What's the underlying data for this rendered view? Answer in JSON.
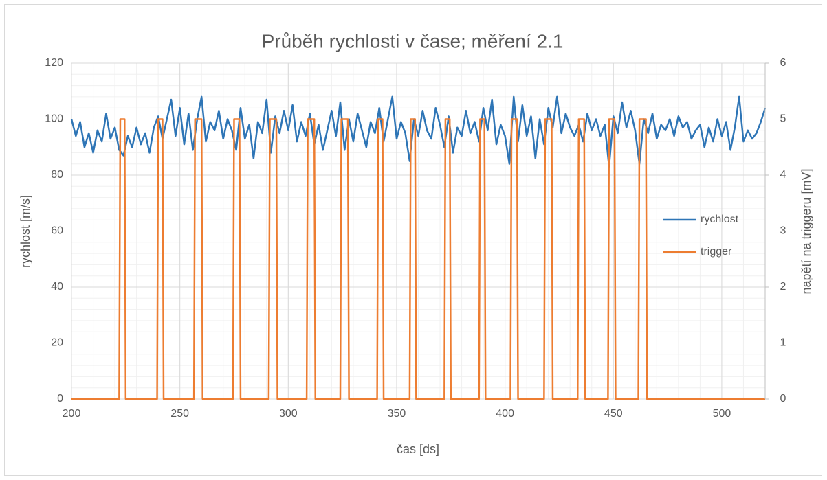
{
  "chart_data": {
    "type": "line",
    "title": "Průběh rychlosti v čase; měření 2.1",
    "x_label": "čas [ds]",
    "y_label": "rychlost [m/s]",
    "y2_label": "napětí na triggeru [mV]",
    "xlim": [
      200,
      520
    ],
    "xticks": [
      200,
      250,
      300,
      350,
      400,
      450,
      500
    ],
    "ylim": [
      0,
      120
    ],
    "yticks": [
      0,
      20,
      40,
      60,
      80,
      100,
      120
    ],
    "y2lim": [
      0,
      6
    ],
    "y2ticks": [
      0,
      1,
      2,
      3,
      4,
      5,
      6
    ],
    "grid": true,
    "legend": "right",
    "series": [
      {
        "name": "rychlost",
        "color": "#2e75b6",
        "x": [
          200,
          202,
          204,
          206,
          208,
          210,
          212,
          214,
          216,
          218,
          220,
          222,
          224,
          226,
          228,
          230,
          232,
          234,
          236,
          238,
          240,
          242,
          244,
          246,
          248,
          250,
          252,
          254,
          256,
          258,
          260,
          262,
          264,
          266,
          268,
          270,
          272,
          274,
          276,
          278,
          280,
          282,
          284,
          286,
          288,
          290,
          292,
          294,
          296,
          298,
          300,
          302,
          304,
          306,
          308,
          310,
          312,
          314,
          316,
          318,
          320,
          322,
          324,
          326,
          328,
          330,
          332,
          334,
          336,
          338,
          340,
          342,
          344,
          346,
          348,
          350,
          352,
          354,
          356,
          358,
          360,
          362,
          364,
          366,
          368,
          370,
          372,
          374,
          376,
          378,
          380,
          382,
          384,
          386,
          388,
          390,
          392,
          394,
          396,
          398,
          400,
          402,
          404,
          406,
          408,
          410,
          412,
          414,
          416,
          418,
          420,
          422,
          424,
          426,
          428,
          430,
          432,
          434,
          436,
          438,
          440,
          442,
          444,
          446,
          448,
          450,
          452,
          454,
          456,
          458,
          460,
          462,
          464,
          466,
          468,
          470,
          472,
          474,
          476,
          478,
          480,
          482,
          484,
          486,
          488,
          490,
          492,
          494,
          496,
          498,
          500,
          502,
          504,
          506,
          508,
          510,
          512,
          514,
          516,
          518,
          520
        ],
        "values": [
          100,
          94,
          99,
          90,
          95,
          88,
          96,
          92,
          102,
          93,
          97,
          89,
          87,
          94,
          90,
          97,
          91,
          95,
          88,
          97,
          101,
          93,
          100,
          107,
          94,
          104,
          91,
          102,
          89,
          100,
          108,
          92,
          99,
          96,
          103,
          93,
          100,
          96,
          89,
          104,
          93,
          98,
          86,
          99,
          95,
          107,
          88,
          101,
          95,
          103,
          96,
          105,
          92,
          99,
          94,
          102,
          91,
          98,
          89,
          96,
          103,
          94,
          106,
          89,
          100,
          92,
          102,
          96,
          90,
          99,
          95,
          104,
          92,
          100,
          108,
          93,
          99,
          95,
          85,
          100,
          94,
          103,
          96,
          93,
          104,
          98,
          90,
          101,
          88,
          97,
          94,
          103,
          95,
          99,
          92,
          104,
          96,
          107,
          91,
          98,
          94,
          84,
          108,
          92,
          105,
          94,
          101,
          86,
          100,
          91,
          104,
          97,
          108,
          95,
          102,
          97,
          94,
          98,
          92,
          102,
          96,
          100,
          94,
          98,
          83,
          101,
          95,
          106,
          97,
          103,
          96,
          84,
          100,
          95,
          102,
          93,
          98,
          96,
          100,
          94,
          101,
          97,
          99,
          93,
          96,
          98,
          90,
          97,
          92,
          100,
          94,
          99,
          89,
          97,
          108,
          92,
          96,
          93,
          95,
          99,
          104
        ]
      },
      {
        "name": "trigger",
        "color": "#ed7d31",
        "axis": "y2",
        "x": [
          200,
          222,
          222.5,
          224.5,
          225,
          239.5,
          240,
          242,
          242.5,
          256.5,
          257,
          260,
          260.5,
          274.5,
          275,
          277.5,
          278,
          291,
          291.5,
          294.5,
          295,
          308.5,
          309,
          312,
          312.5,
          324,
          324.5,
          327.5,
          328,
          341,
          341.5,
          343.5,
          344,
          356,
          356.5,
          358.5,
          359,
          372,
          372.5,
          374.5,
          375,
          388,
          388.5,
          390.5,
          391,
          402.5,
          403,
          405.5,
          406,
          418,
          418.5,
          421.5,
          422,
          433.5,
          434,
          436.5,
          437,
          447.5,
          448,
          450.5,
          451,
          461.5,
          462,
          465,
          465.5,
          520
        ],
        "values": [
          0,
          0,
          5,
          5,
          0,
          0,
          5,
          5,
          0,
          0,
          5,
          5,
          0,
          0,
          5,
          5,
          0,
          0,
          5,
          5,
          0,
          0,
          5,
          5,
          0,
          0,
          5,
          5,
          0,
          0,
          5,
          5,
          0,
          0,
          5,
          5,
          0,
          0,
          5,
          5,
          0,
          0,
          5,
          5,
          0,
          0,
          5,
          5,
          0,
          0,
          5,
          5,
          0,
          0,
          5,
          5,
          0,
          0,
          5,
          5,
          0,
          0,
          5,
          5,
          0,
          0
        ]
      }
    ]
  }
}
